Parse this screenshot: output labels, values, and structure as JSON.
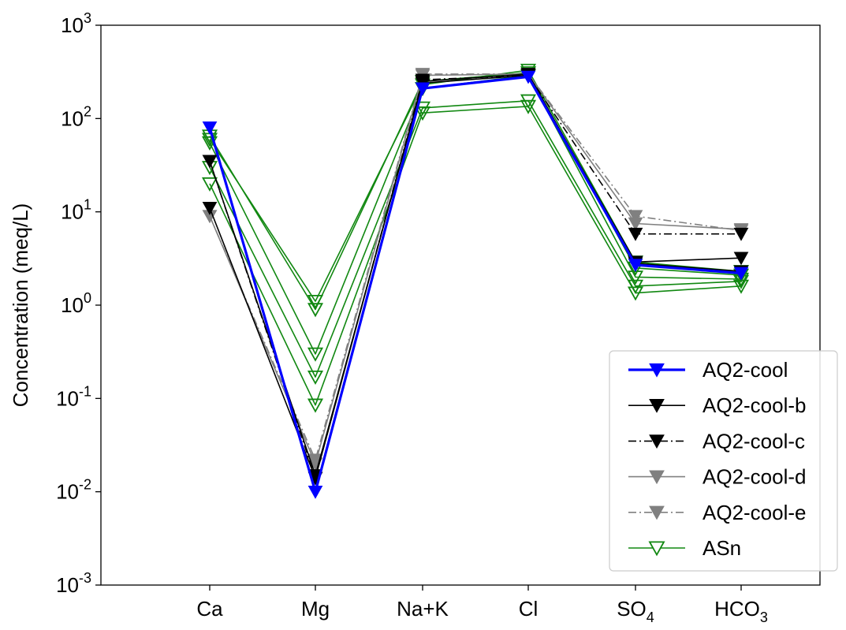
{
  "chart_data": {
    "type": "line",
    "ylabel": "Concentration (meq/L)",
    "xlabel": "",
    "yscale": "log",
    "ylim": [
      0.001,
      1000
    ],
    "y_ticks": [
      {
        "base": "10",
        "exp": "-3",
        "value": 0.001
      },
      {
        "base": "10",
        "exp": "-2",
        "value": 0.01
      },
      {
        "base": "10",
        "exp": "-1",
        "value": 0.1
      },
      {
        "base": "10",
        "exp": "0",
        "value": 1
      },
      {
        "base": "10",
        "exp": "1",
        "value": 10
      },
      {
        "base": "10",
        "exp": "2",
        "value": 100
      },
      {
        "base": "10",
        "exp": "3",
        "value": 1000
      }
    ],
    "categories": [
      {
        "main": "Ca",
        "sub": ""
      },
      {
        "main": "Mg",
        "sub": ""
      },
      {
        "main": "Na+K",
        "sub": ""
      },
      {
        "main": "Cl",
        "sub": ""
      },
      {
        "main": "SO",
        "sub": "4"
      },
      {
        "main": "HCO",
        "sub": "3"
      }
    ],
    "grid": false,
    "legend_position": "lower-right",
    "series": [
      {
        "name": "AQ2-cool",
        "color": "#0000ff",
        "dash": "solid",
        "marker": "filled-down-triangle",
        "width": 3.2,
        "samples": [
          [
            80,
            0.01,
            210,
            280,
            2.7,
            2.2
          ]
        ]
      },
      {
        "name": "AQ2-cool-b",
        "color": "#000000",
        "dash": "solid",
        "marker": "filled-down-triangle",
        "width": 1.6,
        "samples": [
          [
            35,
            0.015,
            240,
            290,
            2.9,
            3.2
          ],
          [
            11,
            0.014,
            250,
            300,
            2.8,
            2.3
          ]
        ]
      },
      {
        "name": "AQ2-cool-c",
        "color": "#000000",
        "dash": "dashdot",
        "marker": "filled-down-triangle",
        "width": 1.6,
        "samples": [
          [
            35,
            0.014,
            260,
            290,
            5.8,
            5.8
          ]
        ]
      },
      {
        "name": "AQ2-cool-d",
        "color": "#808080",
        "dash": "solid",
        "marker": "filled-down-triangle",
        "width": 1.6,
        "samples": [
          [
            9,
            0.02,
            290,
            300,
            7.5,
            6.5
          ]
        ]
      },
      {
        "name": "AQ2-cool-e",
        "color": "#808080",
        "dash": "dashdot",
        "marker": "filled-down-triangle",
        "width": 1.6,
        "samples": [
          [
            9,
            0.022,
            300,
            300,
            9,
            6.3
          ]
        ]
      },
      {
        "name": "ASn",
        "color": "#118811",
        "dash": "solid",
        "marker": "open-down-triangle",
        "width": 1.6,
        "samples": [
          [
            60,
            1.1,
            230,
            330,
            2.9,
            2.3
          ],
          [
            65,
            0.9,
            250,
            310,
            2.5,
            2.1
          ],
          [
            55,
            0.3,
            210,
            290,
            2.0,
            1.9
          ],
          [
            30,
            0.17,
            130,
            155,
            1.6,
            1.8
          ],
          [
            20,
            0.085,
            115,
            135,
            1.35,
            1.6
          ]
        ]
      }
    ]
  }
}
